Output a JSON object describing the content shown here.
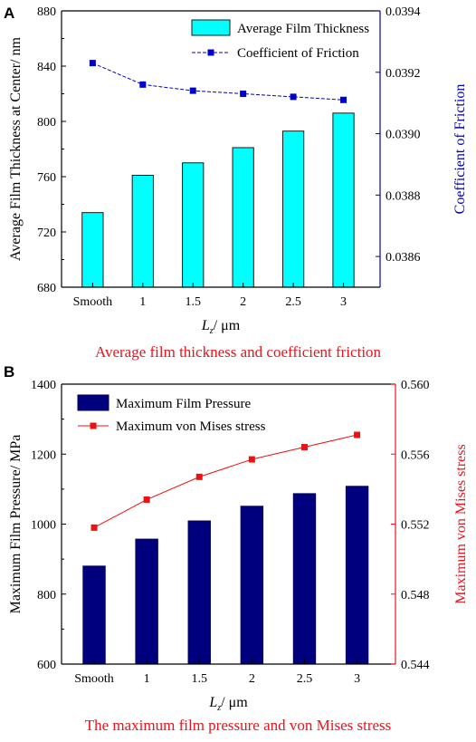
{
  "chart_data": [
    {
      "panel": "A",
      "type": "bar",
      "caption": "Average film thickness and coefficient friction",
      "xlabel": "Lz/ μm",
      "xlabel_main": "L",
      "xlabel_sub": "z",
      "xlabel_rest": "/ μm",
      "categories": [
        "Smooth",
        "1",
        "1.5",
        "2",
        "2.5",
        "3"
      ],
      "ylabel": "Average Film Thickness at Center/ nm",
      "ylim": [
        680,
        880
      ],
      "yticks": [
        "680",
        "720",
        "760",
        "800",
        "840",
        "880"
      ],
      "y2label": "Coefficient of Friction",
      "y2lim": [
        0.0385,
        0.0394
      ],
      "y2ticks": [
        "0.0386",
        "0.0388",
        "0.0390",
        "0.0392",
        "0.0394"
      ],
      "series": [
        {
          "name": "Average Film Thickness",
          "kind": "bar",
          "axis": "left",
          "color": "#00ffff",
          "values": [
            734,
            761,
            770,
            781,
            793,
            806
          ]
        },
        {
          "name": "Coefficient of Friction",
          "kind": "line",
          "axis": "right",
          "color": "#0000cc",
          "values": [
            0.03923,
            0.03916,
            0.03914,
            0.03913,
            0.03912,
            0.03911
          ]
        }
      ],
      "grid": false,
      "legend_position": "top-right",
      "caption_color": "#e8141c",
      "right_axis_color": "#0000aa"
    },
    {
      "panel": "B",
      "type": "bar",
      "caption": "The maximum film pressure and von Mises stress",
      "xlabel": "Lz/ μm",
      "xlabel_main": "L",
      "xlabel_sub": "z",
      "xlabel_rest": "/ μm",
      "categories": [
        "Smooth",
        "1",
        "1.5",
        "2",
        "2.5",
        "3"
      ],
      "ylabel": "Maximum Film Pressure/ MPa",
      "ylim": [
        600,
        1400
      ],
      "yticks": [
        "600",
        "800",
        "1000",
        "1200",
        "1400"
      ],
      "y2label": "Maximum von Mises stress",
      "y2lim": [
        0.544,
        0.56
      ],
      "y2ticks": [
        "0.544",
        "0.548",
        "0.552",
        "0.556",
        "0.560"
      ],
      "series": [
        {
          "name": "Maximum  Film Pressure",
          "kind": "bar",
          "axis": "left",
          "color": "#00007f",
          "values": [
            880,
            957,
            1009,
            1051,
            1087,
            1108
          ]
        },
        {
          "name": "Maximum von Mises stress",
          "kind": "line",
          "axis": "right",
          "color": "#ee1111",
          "values": [
            0.5518,
            0.5534,
            0.5547,
            0.5557,
            0.5564,
            0.5571
          ]
        }
      ],
      "grid": false,
      "legend_position": "top-left",
      "caption_color": "#e8141c",
      "right_axis_color": "#e8141c"
    }
  ]
}
